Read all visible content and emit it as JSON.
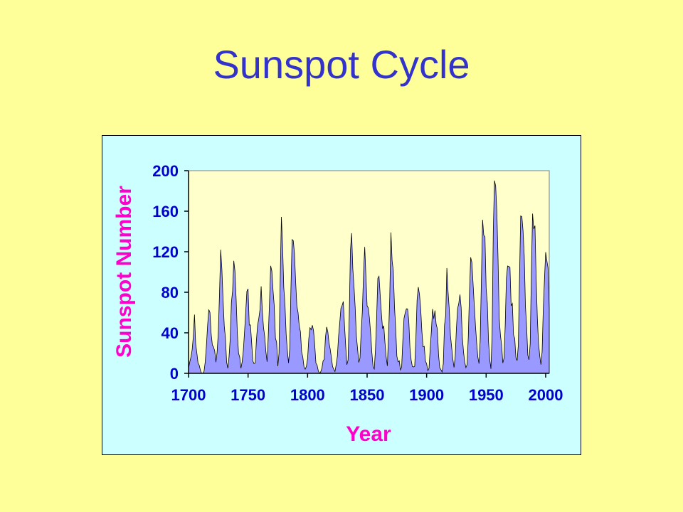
{
  "slide": {
    "title": "Sunspot Cycle"
  },
  "colors": {
    "background": "#ffff99",
    "title": "#3333cc",
    "panel": "#ccffff",
    "plot_area": "#ffffcc",
    "fill": "#9999ff",
    "tick_labels": "#0000cc",
    "axis_titles": "#ff00cc"
  },
  "chart_data": {
    "type": "area",
    "title": "",
    "xlabel": "Year",
    "ylabel": "Sunspot Number",
    "xlim": [
      1700,
      2003
    ],
    "ylim": [
      0,
      200
    ],
    "x_ticks": [
      1700,
      1750,
      1800,
      1850,
      1900,
      1950,
      2000
    ],
    "y_ticks": [
      0,
      40,
      80,
      120,
      160,
      200
    ],
    "grid": false,
    "legend": "none",
    "x": [
      1700,
      1701,
      1702,
      1703,
      1704,
      1705,
      1706,
      1707,
      1708,
      1709,
      1710,
      1711,
      1712,
      1713,
      1714,
      1715,
      1716,
      1717,
      1718,
      1719,
      1720,
      1721,
      1722,
      1723,
      1724,
      1725,
      1726,
      1727,
      1728,
      1729,
      1730,
      1731,
      1732,
      1733,
      1734,
      1735,
      1736,
      1737,
      1738,
      1739,
      1740,
      1741,
      1742,
      1743,
      1744,
      1745,
      1746,
      1747,
      1748,
      1749,
      1750,
      1751,
      1752,
      1753,
      1754,
      1755,
      1756,
      1757,
      1758,
      1759,
      1760,
      1761,
      1762,
      1763,
      1764,
      1765,
      1766,
      1767,
      1768,
      1769,
      1770,
      1771,
      1772,
      1773,
      1774,
      1775,
      1776,
      1777,
      1778,
      1779,
      1780,
      1781,
      1782,
      1783,
      1784,
      1785,
      1786,
      1787,
      1788,
      1789,
      1790,
      1791,
      1792,
      1793,
      1794,
      1795,
      1796,
      1797,
      1798,
      1799,
      1800,
      1801,
      1802,
      1803,
      1804,
      1805,
      1806,
      1807,
      1808,
      1809,
      1810,
      1811,
      1812,
      1813,
      1814,
      1815,
      1816,
      1817,
      1818,
      1819,
      1820,
      1821,
      1822,
      1823,
      1824,
      1825,
      1826,
      1827,
      1828,
      1829,
      1830,
      1831,
      1832,
      1833,
      1834,
      1835,
      1836,
      1837,
      1838,
      1839,
      1840,
      1841,
      1842,
      1843,
      1844,
      1845,
      1846,
      1847,
      1848,
      1849,
      1850,
      1851,
      1852,
      1853,
      1854,
      1855,
      1856,
      1857,
      1858,
      1859,
      1860,
      1861,
      1862,
      1863,
      1864,
      1865,
      1866,
      1867,
      1868,
      1869,
      1870,
      1871,
      1872,
      1873,
      1874,
      1875,
      1876,
      1877,
      1878,
      1879,
      1880,
      1881,
      1882,
      1883,
      1884,
      1885,
      1886,
      1887,
      1888,
      1889,
      1890,
      1891,
      1892,
      1893,
      1894,
      1895,
      1896,
      1897,
      1898,
      1899,
      1900,
      1901,
      1902,
      1903,
      1904,
      1905,
      1906,
      1907,
      1908,
      1909,
      1910,
      1911,
      1912,
      1913,
      1914,
      1915,
      1916,
      1917,
      1918,
      1919,
      1920,
      1921,
      1922,
      1923,
      1924,
      1925,
      1926,
      1927,
      1928,
      1929,
      1930,
      1931,
      1932,
      1933,
      1934,
      1935,
      1936,
      1937,
      1938,
      1939,
      1940,
      1941,
      1942,
      1943,
      1944,
      1945,
      1946,
      1947,
      1948,
      1949,
      1950,
      1951,
      1952,
      1953,
      1954,
      1955,
      1956,
      1957,
      1958,
      1959,
      1960,
      1961,
      1962,
      1963,
      1964,
      1965,
      1966,
      1967,
      1968,
      1969,
      1970,
      1971,
      1972,
      1973,
      1974,
      1975,
      1976,
      1977,
      1978,
      1979,
      1980,
      1981,
      1982,
      1983,
      1984,
      1985,
      1986,
      1987,
      1988,
      1989,
      1990,
      1991,
      1992,
      1993,
      1994,
      1995,
      1996,
      1997,
      1998,
      1999,
      2000,
      2001,
      2002,
      2003
    ],
    "y": [
      5,
      11,
      16,
      23,
      36,
      58,
      29,
      20,
      10,
      8,
      3,
      0,
      0,
      2,
      11,
      27,
      47,
      63,
      60,
      39,
      28,
      26,
      22,
      11,
      21,
      40,
      78,
      122,
      103,
      73,
      47,
      35,
      11,
      5,
      16,
      34,
      70,
      81,
      111,
      101,
      73,
      40,
      20,
      16,
      5,
      11,
      22,
      40,
      60,
      80.9,
      83.4,
      47.7,
      47.8,
      30.7,
      12.2,
      9.6,
      10.2,
      32.4,
      47.6,
      54,
      62.9,
      85.9,
      61.2,
      45.1,
      36.4,
      20.9,
      11.4,
      37.8,
      69.8,
      106.1,
      100.8,
      81.6,
      66.5,
      34.8,
      30.6,
      7,
      19.8,
      92.5,
      154.4,
      125.9,
      84.8,
      68.1,
      38.5,
      22.8,
      10.2,
      24.1,
      82.9,
      132,
      130.9,
      118.1,
      89.9,
      66.6,
      60,
      46.9,
      41,
      21.3,
      16,
      6.4,
      4.1,
      6.8,
      14.5,
      34,
      45,
      43.1,
      47.5,
      42.2,
      28.1,
      10.1,
      8.1,
      2.5,
      0,
      1.4,
      5,
      12.2,
      13.9,
      35.4,
      45.8,
      41.1,
      30.1,
      23.9,
      15.6,
      6.6,
      4,
      1.8,
      8.5,
      16.6,
      36.3,
      49.6,
      64.2,
      67,
      70.9,
      47.8,
      27.5,
      8.5,
      13.2,
      56.9,
      121.5,
      138.3,
      103.2,
      85.7,
      64.6,
      36.7,
      24.2,
      10.7,
      15,
      40.1,
      61.5,
      98.5,
      124.7,
      96.3,
      66.6,
      64.5,
      54.1,
      39,
      20.6,
      6.7,
      4.3,
      22.7,
      54.8,
      93.8,
      95.8,
      77.2,
      59.1,
      44,
      47,
      30.5,
      16.3,
      7.3,
      37.6,
      74,
      139,
      111.2,
      101.6,
      66.2,
      44.7,
      17,
      11.3,
      12.4,
      3.4,
      6,
      32.3,
      54.3,
      59.7,
      63.7,
      63.5,
      52.2,
      25.4,
      13.1,
      6.8,
      6.3,
      7.1,
      35.6,
      73,
      85.1,
      78,
      64,
      41.8,
      26.2,
      26.7,
      12.1,
      9.5,
      2.7,
      5,
      24.4,
      42,
      63.5,
      53.8,
      62,
      48.5,
      43.9,
      18.6,
      5.7,
      3.6,
      1.4,
      9.6,
      47.4,
      57.1,
      103.9,
      80.6,
      63.6,
      37.6,
      26.1,
      14.2,
      5.8,
      16.7,
      44.3,
      63.9,
      69,
      77.8,
      64.9,
      35.7,
      21.2,
      11.1,
      5.7,
      8.7,
      36.1,
      79.7,
      114.4,
      109.6,
      88.8,
      67.8,
      47.5,
      30.6,
      16.3,
      9.6,
      33.2,
      92.6,
      151.6,
      136.3,
      134.7,
      83.9,
      69.4,
      31.5,
      13.9,
      4.4,
      38,
      141.7,
      190.2,
      184.8,
      159,
      112.3,
      53.9,
      37.6,
      27.9,
      10.2,
      15.1,
      47,
      93.8,
      105.9,
      105.5,
      104.5,
      66.6,
      68.9,
      38,
      34.5,
      15.5,
      12.6,
      27.5,
      92.5,
      155.4,
      154.6,
      140.4,
      115.9,
      66.6,
      45.9,
      17.9,
      13.4,
      29.4,
      100.2,
      157.6,
      142.6,
      145.7,
      94.3,
      54.6,
      29.9,
      17.5,
      8.6,
      21.5,
      64.3,
      93.3,
      119.6,
      111,
      104,
      63.7
    ]
  }
}
